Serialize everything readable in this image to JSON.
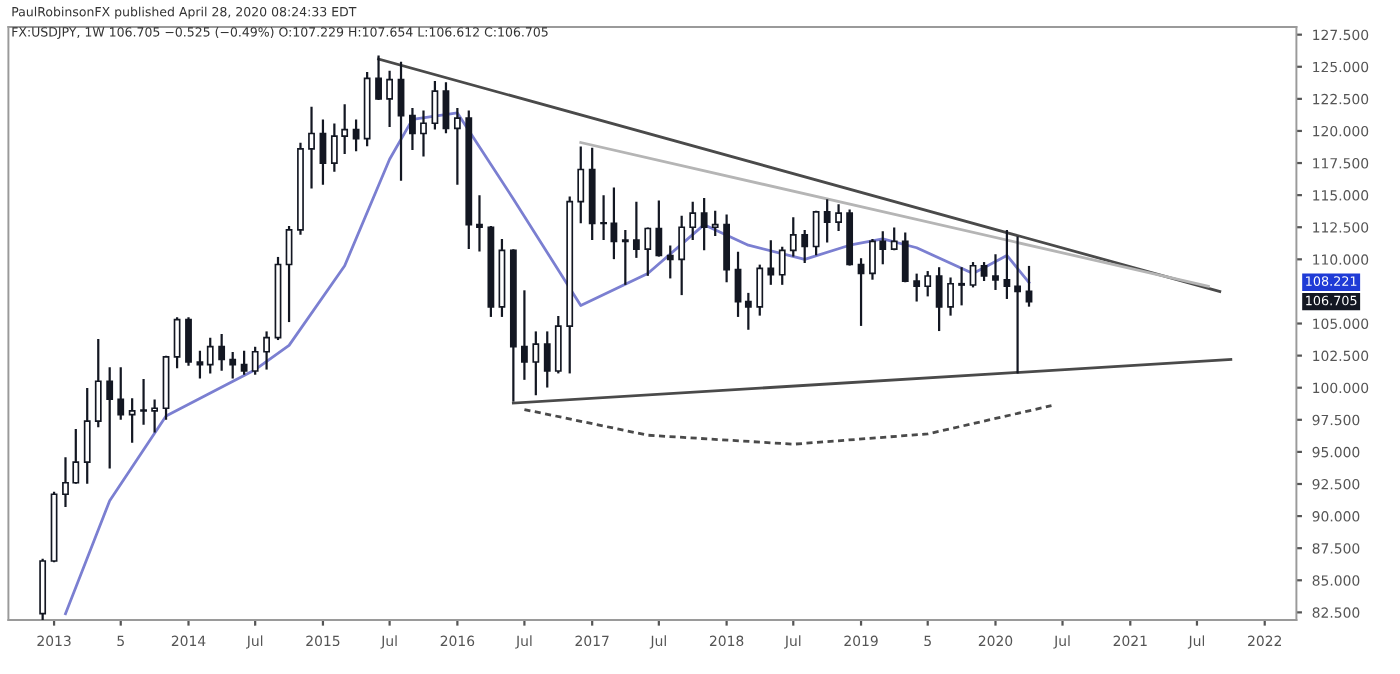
{
  "chart_data": {
    "type": "candlestick",
    "annotations": [
      "PaulRobinsonFX published April 28, 2020 08:24:33 EDT",
      "FX:USDJPY, 1W 106.705 −0.525 (−0.49%) O:107.229 H:107.654 L:106.612 C:106.705",
      {
        "text": "108.221",
        "y": 108.221
      },
      {
        "text": "106.705",
        "y": 106.705
      }
    ],
    "ylim": [
      81.9,
      128.1
    ],
    "yticks": [
      {
        "value": 82.5,
        "label": "82.500"
      },
      {
        "value": 85,
        "label": "85.000"
      },
      {
        "value": 87.5,
        "label": "87.500"
      },
      {
        "value": 90,
        "label": "90.000"
      },
      {
        "value": 92.5,
        "label": "92.500"
      },
      {
        "value": 95,
        "label": "95.000"
      },
      {
        "value": 97.5,
        "label": "97.500"
      },
      {
        "value": 100,
        "label": "100.000"
      },
      {
        "value": 102.5,
        "label": "102.500"
      },
      {
        "value": 105,
        "label": "105.000"
      },
      {
        "value": 110,
        "label": "110.000"
      },
      {
        "value": 112.5,
        "label": "112.500"
      },
      {
        "value": 115,
        "label": "115.000"
      },
      {
        "value": 117.5,
        "label": "117.500"
      },
      {
        "value": 120,
        "label": "120.000"
      },
      {
        "value": 122.5,
        "label": "122.500"
      },
      {
        "value": 125,
        "label": "125.000"
      },
      {
        "value": 127.5,
        "label": "127.500"
      }
    ],
    "xlim": [
      "2012-08-30",
      "2022-03-28"
    ],
    "xticks": [
      {
        "value": "2013",
        "label": "2013"
      },
      {
        "value": "2013-07",
        "label": "5"
      },
      {
        "value": "2014",
        "label": "2014"
      },
      {
        "value": "2014-07",
        "label": "Jul"
      },
      {
        "value": "2015",
        "label": "2015"
      },
      {
        "value": "2015-07",
        "label": "Jul"
      },
      {
        "value": "2016",
        "label": "2016"
      },
      {
        "value": "2016-07",
        "label": "Jul"
      },
      {
        "value": "2017",
        "label": "2017"
      },
      {
        "value": "2017-07",
        "label": "Jul"
      },
      {
        "value": "2018",
        "label": "2018"
      },
      {
        "value": "2018-07",
        "label": "Jul"
      },
      {
        "value": "2019",
        "label": "2019"
      },
      {
        "value": "2019-07",
        "label": "5"
      },
      {
        "value": "2020",
        "label": "2020"
      },
      {
        "value": "2020-07",
        "label": "Jul"
      },
      {
        "value": "2021",
        "label": "2021"
      },
      {
        "value": "2021-07",
        "label": "Jul"
      },
      {
        "value": "2022",
        "label": "2022"
      }
    ],
    "grid": false,
    "legend": false,
    "series": [
      {
        "color": "#131722",
        "x": [
          "2012-12",
          "2013-01",
          "2013-02",
          "2013-03",
          "2013-04",
          "2013-05",
          "2013-06",
          "2013-07",
          "2013-08",
          "2013-09",
          "2013-10",
          "2013-11",
          "2013-12",
          "2014-01",
          "2014-02",
          "2014-03",
          "2014-04",
          "2014-05",
          "2014-06",
          "2014-07",
          "2014-08",
          "2014-09",
          "2014-10",
          "2014-11",
          "2014-12",
          "2015-01",
          "2015-02",
          "2015-03",
          "2015-04",
          "2015-05",
          "2015-06",
          "2015-07",
          "2015-08",
          "2015-09",
          "2015-10",
          "2015-11",
          "2015-12",
          "2016-01",
          "2016-02",
          "2016-03",
          "2016-04",
          "2016-05",
          "2016-06",
          "2016-07",
          "2016-08",
          "2016-09",
          "2016-10",
          "2016-11",
          "2016-12",
          "2017-01",
          "2017-02",
          "2017-03",
          "2017-04",
          "2017-05",
          "2017-06",
          "2017-07",
          "2017-08",
          "2017-09",
          "2017-10",
          "2017-11",
          "2017-12",
          "2018-01",
          "2018-02",
          "2018-03",
          "2018-04",
          "2018-05",
          "2018-06",
          "2018-07",
          "2018-08",
          "2018-09",
          "2018-10",
          "2018-11",
          "2018-12",
          "2019-01",
          "2019-02",
          "2019-03",
          "2019-04",
          "2019-05",
          "2019-06",
          "2019-07",
          "2019-08",
          "2019-09",
          "2019-10",
          "2019-11",
          "2019-12",
          "2020-01",
          "2020-02",
          "2020-03",
          "2020-04"
        ],
        "ohlc": [
          [
            82.4,
            86.6,
            82.0,
            86.5
          ],
          [
            86.5,
            91.8,
            86.5,
            91.7
          ],
          [
            91.7,
            94.5,
            90.8,
            92.6
          ],
          [
            92.6,
            96.7,
            92.6,
            94.2
          ],
          [
            94.2,
            99.9,
            92.6,
            97.4
          ],
          [
            97.4,
            103.7,
            97.0,
            100.5
          ],
          [
            100.5,
            101.5,
            93.8,
            99.1
          ],
          [
            99.1,
            101.5,
            97.6,
            97.9
          ],
          [
            97.9,
            99.1,
            95.8,
            98.2
          ],
          [
            98.2,
            100.6,
            97.2,
            98.2
          ],
          [
            98.2,
            99.0,
            96.6,
            98.4
          ],
          [
            98.4,
            102.4,
            97.6,
            102.4
          ],
          [
            102.4,
            105.4,
            101.6,
            105.3
          ],
          [
            105.3,
            105.4,
            101.8,
            102.0
          ],
          [
            102.0,
            102.8,
            100.8,
            101.8
          ],
          [
            101.8,
            103.8,
            101.2,
            103.2
          ],
          [
            103.2,
            104.1,
            101.4,
            102.2
          ],
          [
            102.2,
            102.7,
            100.8,
            101.8
          ],
          [
            101.8,
            102.8,
            101.1,
            101.3
          ],
          [
            101.3,
            103.1,
            101.1,
            102.8
          ],
          [
            102.8,
            104.3,
            101.5,
            103.9
          ],
          [
            103.9,
            110.1,
            103.8,
            109.6
          ],
          [
            109.6,
            112.5,
            105.2,
            112.3
          ],
          [
            112.3,
            119.0,
            112.0,
            118.6
          ],
          [
            118.6,
            121.8,
            115.6,
            119.8
          ],
          [
            119.8,
            120.8,
            115.9,
            117.5
          ],
          [
            117.5,
            120.5,
            116.9,
            119.6
          ],
          [
            119.6,
            122.0,
            118.3,
            120.1
          ],
          [
            120.1,
            120.8,
            118.5,
            119.4
          ],
          [
            119.4,
            124.5,
            118.9,
            124.1
          ],
          [
            124.1,
            125.8,
            122.5,
            122.5
          ],
          [
            122.5,
            124.6,
            120.4,
            124.0
          ],
          [
            124.0,
            125.3,
            116.2,
            121.2
          ],
          [
            121.2,
            121.7,
            118.6,
            119.8
          ],
          [
            119.8,
            121.5,
            118.1,
            120.6
          ],
          [
            120.6,
            123.8,
            120.2,
            123.1
          ],
          [
            123.1,
            123.7,
            119.9,
            120.2
          ],
          [
            120.2,
            121.7,
            115.9,
            121.0
          ],
          [
            121.0,
            121.5,
            110.9,
            112.7
          ],
          [
            112.7,
            114.9,
            110.7,
            112.5
          ],
          [
            112.5,
            112.5,
            105.6,
            106.3
          ],
          [
            106.3,
            111.5,
            105.6,
            110.7
          ],
          [
            110.7,
            110.7,
            99.0,
            103.2
          ],
          [
            103.2,
            107.5,
            100.7,
            102.0
          ],
          [
            102.0,
            104.3,
            99.5,
            103.4
          ],
          [
            103.4,
            104.3,
            100.1,
            101.3
          ],
          [
            101.3,
            105.5,
            101.2,
            104.8
          ],
          [
            104.8,
            114.8,
            101.2,
            114.5
          ],
          [
            114.5,
            118.7,
            112.9,
            117.0
          ],
          [
            117.0,
            118.6,
            111.6,
            112.8
          ],
          [
            112.8,
            114.9,
            111.6,
            112.8
          ],
          [
            112.8,
            115.5,
            110.1,
            111.4
          ],
          [
            111.4,
            112.2,
            108.1,
            111.5
          ],
          [
            111.5,
            114.4,
            110.2,
            110.8
          ],
          [
            110.8,
            112.4,
            108.8,
            112.4
          ],
          [
            112.4,
            114.5,
            110.3,
            110.3
          ],
          [
            110.3,
            111.0,
            108.6,
            110.0
          ],
          [
            110.0,
            113.3,
            107.3,
            112.5
          ],
          [
            112.5,
            114.4,
            111.6,
            113.6
          ],
          [
            113.6,
            114.7,
            110.8,
            112.5
          ],
          [
            112.5,
            113.7,
            111.9,
            112.7
          ],
          [
            112.7,
            113.4,
            108.3,
            109.2
          ],
          [
            109.2,
            110.5,
            105.6,
            106.7
          ],
          [
            106.7,
            107.3,
            104.6,
            106.3
          ],
          [
            106.3,
            109.5,
            105.7,
            109.3
          ],
          [
            109.3,
            111.4,
            108.1,
            108.8
          ],
          [
            108.8,
            110.9,
            108.1,
            110.7
          ],
          [
            110.7,
            113.2,
            110.3,
            111.9
          ],
          [
            111.9,
            112.2,
            109.8,
            111.0
          ],
          [
            111.0,
            113.7,
            110.4,
            113.7
          ],
          [
            113.7,
            114.6,
            111.4,
            112.9
          ],
          [
            112.9,
            114.2,
            112.3,
            113.6
          ],
          [
            113.6,
            113.8,
            109.6,
            109.6
          ],
          [
            109.6,
            110.0,
            104.9,
            108.9
          ],
          [
            108.9,
            111.5,
            108.5,
            111.4
          ],
          [
            111.4,
            112.1,
            109.7,
            110.8
          ],
          [
            110.8,
            112.4,
            110.8,
            111.4
          ],
          [
            111.4,
            112.0,
            108.3,
            108.3
          ],
          [
            108.3,
            108.8,
            106.8,
            107.9
          ],
          [
            107.9,
            109.0,
            107.2,
            108.7
          ],
          [
            108.7,
            109.3,
            104.5,
            106.3
          ],
          [
            106.3,
            108.5,
            105.7,
            108.1
          ],
          [
            108.1,
            109.3,
            106.5,
            108.0
          ],
          [
            108.0,
            109.7,
            107.9,
            109.5
          ],
          [
            109.5,
            109.7,
            108.4,
            108.7
          ],
          [
            108.7,
            110.3,
            107.7,
            108.4
          ],
          [
            108.4,
            112.2,
            107.0,
            107.9
          ],
          [
            107.9,
            111.7,
            101.2,
            107.5
          ],
          [
            107.5,
            109.4,
            106.4,
            106.7
          ]
        ]
      },
      {
        "type": "line",
        "color": "#7b7fd1",
        "line_style": "solid",
        "x": [
          "2013-02",
          "2013-06",
          "2013-11",
          "2014-07",
          "2014-10",
          "2015-03",
          "2015-07",
          "2015-09",
          "2016-01",
          "2016-06",
          "2016-12",
          "2017-06",
          "2017-11",
          "2018-03",
          "2018-08",
          "2018-12",
          "2019-03",
          "2019-06",
          "2019-11",
          "2020-02",
          "2020-04"
        ],
        "values": [
          82.4,
          91.2,
          97.8,
          101.4,
          103.3,
          109.5,
          117.8,
          120.9,
          121.4,
          114.7,
          106.4,
          108.9,
          112.7,
          111.1,
          110.0,
          111.1,
          111.6,
          110.9,
          108.9,
          110.3,
          108.2
        ]
      },
      {
        "type": "line",
        "color": "#4a4a4a",
        "line_style": "solid",
        "x": [
          "2015-06",
          "2021-09"
        ],
        "values": [
          125.6,
          107.5
        ]
      },
      {
        "type": "line",
        "color": "#b5b5b5",
        "line_style": "solid",
        "x": [
          "2016-12",
          "2021-08"
        ],
        "values": [
          119.1,
          107.9
        ]
      },
      {
        "type": "line",
        "color": "#4a4a4a",
        "line_style": "solid",
        "x": [
          "2016-06",
          "2021-10"
        ],
        "values": [
          98.8,
          102.2
        ]
      },
      {
        "type": "line",
        "color": "#4a4a4a",
        "line_style": "dashed",
        "x": [
          "2016-07",
          "2017-06",
          "2018-07",
          "2019-07",
          "2020-06"
        ],
        "values": [
          98.3,
          96.3,
          95.6,
          96.4,
          98.6
        ]
      }
    ]
  }
}
